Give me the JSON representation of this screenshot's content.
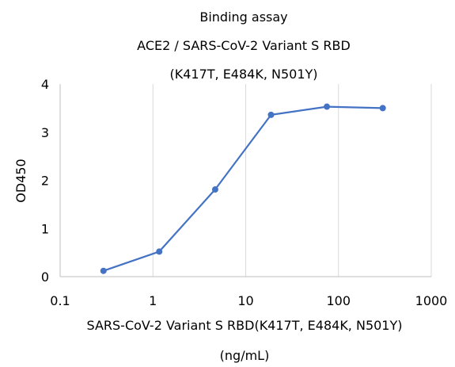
{
  "chart_data": {
    "type": "line",
    "title_lines": [
      "Binding assay",
      "ACE2 / SARS-CoV-2 Variant S RBD",
      "(K417T, E484K, N501Y)"
    ],
    "xlabel_lines": [
      "SARS-CoV-2 Variant S RBD(K417T, E484K, N501Y)",
      "(ng/mL)"
    ],
    "ylabel": "OD450",
    "x_scale": "log",
    "xlim": [
      0.1,
      1000
    ],
    "ylim": [
      0,
      4
    ],
    "x_ticks": [
      0.1,
      1,
      10,
      100,
      1000
    ],
    "x_tick_labels": [
      "0.1",
      "1",
      "10",
      "100",
      "1000"
    ],
    "y_ticks": [
      0,
      1,
      2,
      3,
      4
    ],
    "y_tick_labels": [
      "0",
      "1",
      "2",
      "3",
      "4"
    ],
    "grid": "vertical",
    "series": [
      {
        "color": "#4472C4",
        "x": [
          0.293,
          1.17,
          4.69,
          18.75,
          75,
          300
        ],
        "y": [
          0.12,
          0.52,
          1.81,
          3.36,
          3.53,
          3.5
        ]
      }
    ]
  }
}
